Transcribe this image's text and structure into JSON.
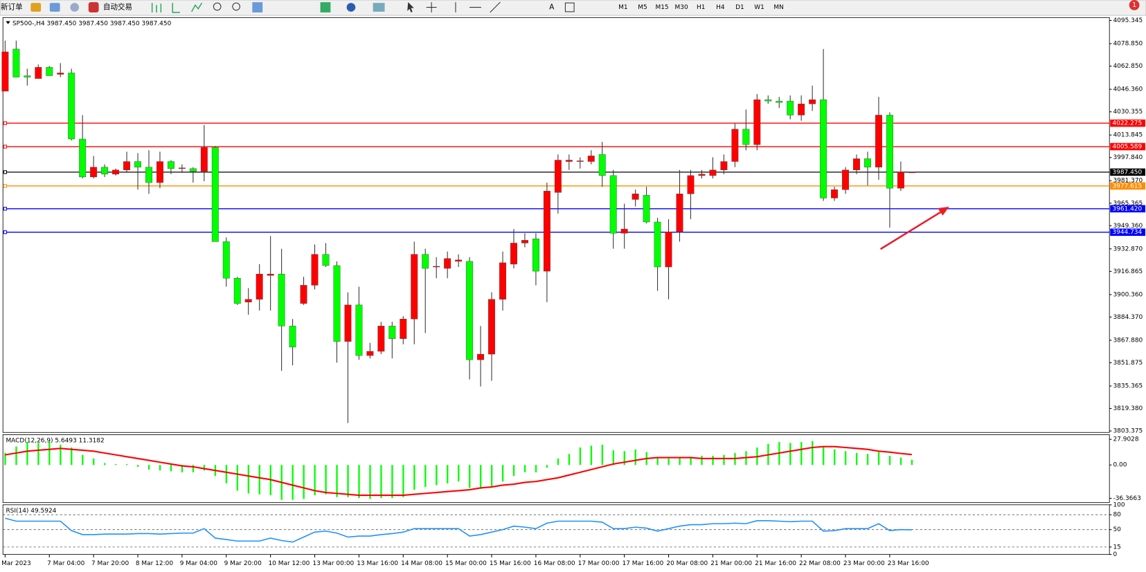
{
  "toolbar": {
    "new_order": "新订单",
    "auto_trading": "自动交易",
    "timeframes": [
      "M1",
      "M5",
      "M15",
      "M30",
      "H1",
      "H4",
      "D1",
      "W1",
      "MN"
    ]
  },
  "notification": 1,
  "chart_data": [
    {
      "type": "candlestick",
      "title": "SP500-,H4 3987.450 3987.450 3987.450 3987.450",
      "up_color": "#ff0000",
      "down_color": "#00ff00",
      "categories": [
        "Mar 2023",
        null,
        null,
        null,
        "7 Mar 04:00",
        null,
        null,
        null,
        "7 Mar 20:00",
        null,
        null,
        null,
        "8 Mar 12:00",
        null,
        null,
        null,
        "9 Mar 04:00",
        null,
        null,
        null,
        "9 Mar 20:00",
        null,
        null,
        null,
        "10 Mar 12:00",
        null,
        null,
        null,
        "13 Mar 00:00",
        null,
        null,
        null,
        "13 Mar 16:00",
        null,
        null,
        null,
        "14 Mar 08:00",
        null,
        null,
        null,
        "15 Mar 00:00",
        null,
        null,
        null,
        "15 Mar 16:00",
        null,
        null,
        null,
        "16 Mar 08:00",
        null,
        null,
        null,
        "17 Mar 00:00",
        null,
        null,
        null,
        "17 Mar 16:00",
        null,
        null,
        null,
        "20 Mar 08:00",
        null,
        null,
        null,
        "21 Mar 00:00",
        null,
        null,
        null,
        "21 Mar 16:00",
        null,
        null,
        null,
        "22 Mar 08:00",
        null,
        null,
        null,
        "23 Mar 00:00",
        null,
        null,
        null,
        "23 Mar 16:00",
        null,
        null
      ],
      "open": [
        4045,
        4075,
        4056,
        4054,
        4062,
        4057,
        4058,
        4011,
        3984,
        3991,
        3986,
        3989,
        3995,
        3991,
        3980,
        3995,
        3990,
        3990,
        3988,
        4005,
        3938,
        3912,
        3895,
        3897,
        3914,
        3915,
        3878,
        3894,
        3907,
        3929,
        3921,
        3867,
        3893,
        3857,
        3860,
        3878,
        3869,
        3883,
        3929,
        3920,
        3919,
        3924,
        3924,
        3854,
        3858,
        3897,
        3922,
        3937,
        3940,
        3917,
        3973,
        3995,
        3995,
        3995,
        4000,
        3985,
        3944,
        3968,
        3971,
        3952,
        3920,
        3945,
        3972,
        3985,
        3985,
        3989,
        3995,
        4018,
        4007,
        4039,
        4038,
        4038,
        4028,
        4036,
        4039,
        3969,
        3975,
        3989,
        3997,
        3991,
        4028,
        3976,
        3987.45
      ],
      "high": [
        4081,
        4081,
        4061,
        4064,
        4063,
        4065,
        4061,
        4028,
        3999,
        3993,
        3990,
        4002,
        4001,
        4003,
        4002,
        3996,
        3993,
        3991,
        4021,
        4006,
        3941,
        3913,
        3905,
        3922,
        3942,
        3933,
        3883,
        3913,
        3936,
        3937,
        3924,
        3902,
        3906,
        3866,
        3881,
        3881,
        3885,
        3938,
        3933,
        3927,
        3931,
        3929,
        3927,
        3878,
        3902,
        3931,
        3947,
        3944,
        3944,
        3980,
        4000,
        4000,
        3998,
        4003,
        4009,
        3989,
        3965,
        3975,
        3977,
        3955,
        3954,
        3989,
        3989,
        3989,
        3998,
        4000,
        4022,
        4032,
        4043,
        4042,
        4041,
        4042,
        4042,
        4049,
        4075,
        3977,
        3991,
        4000,
        4002,
        4041,
        4030,
        3995,
        3987.45
      ],
      "low": [
        4045,
        4055,
        4049,
        4054,
        4056,
        4055,
        4010,
        3983,
        3983,
        3984,
        3985,
        3987,
        3975,
        3972,
        3976,
        3986,
        3987,
        3980,
        3981,
        3938,
        3906,
        3893,
        3886,
        3889,
        3889,
        3846,
        3850,
        3893,
        3904,
        3920,
        3852,
        3809,
        3854,
        3855,
        3858,
        3855,
        3865,
        3865,
        3873,
        3912,
        3912,
        3920,
        3840,
        3835,
        3839,
        3889,
        3919,
        3934,
        3907,
        3895,
        3958,
        3989,
        3990,
        3993,
        3977,
        3933,
        3933,
        3963,
        3951,
        3903,
        3897,
        3938,
        3954,
        3983,
        3983,
        3986,
        3991,
        4003,
        4003,
        4036,
        4033,
        4025,
        4024,
        4031,
        3967,
        3967,
        3972,
        3986,
        3978,
        3982,
        3948,
        3974,
        3987.45
      ],
      "close": [
        4073,
        4055,
        4055,
        4062,
        4056,
        4058,
        4011,
        3984,
        3991,
        3986,
        3989,
        3995,
        3991,
        3980,
        3995,
        3990,
        3990.5,
        3988,
        4005,
        3938,
        3912,
        3894,
        3897,
        3915,
        3915,
        3878,
        3863,
        3907,
        3929,
        3921,
        3867,
        3893,
        3857,
        3860,
        3878,
        3869,
        3883,
        3929,
        3919,
        3920.5,
        3926,
        3925,
        3854,
        3858,
        3897,
        3923,
        3937,
        3939,
        3917,
        3974,
        3996,
        3996,
        3995.5,
        3999,
        3985,
        3944,
        3947,
        3972,
        3952,
        3920,
        3945,
        3972,
        3985,
        3986,
        3989,
        3995,
        4018,
        4007,
        4039,
        4038,
        4037,
        4028,
        4036,
        4039,
        3969,
        3975,
        3989,
        3997,
        3991,
        4028,
        3976,
        3987.45,
        3987.45
      ],
      "ylim": [
        3802.3,
        4097.4
      ],
      "yticks": [
        4095.345,
        {
          "value": 4078.85,
          "label": "4078.850"
        },
        {
          "value": 4062.85,
          "label": "4062.850"
        },
        {
          "value": 4046.36,
          "label": "4046.360"
        },
        4030.355,
        4013.845,
        {
          "value": 3997.84,
          "label": "3997.840"
        },
        {
          "value": 3981.37,
          "label": "3981.370"
        },
        3965.365,
        {
          "value": 3949.36,
          "label": "3949.360"
        },
        {
          "value": 3932.87,
          "label": "3932.870"
        },
        3916.865,
        {
          "value": 3900.36,
          "label": "3900.360"
        },
        {
          "value": 3884.37,
          "label": "3884.370"
        },
        {
          "value": 3867.88,
          "label": "3867.880"
        },
        3851.875,
        3835.365,
        {
          "value": 3819.38,
          "label": "3819.380"
        },
        3803.375
      ],
      "levels": [
        {
          "value": 4022.275,
          "color": "#ff0000"
        },
        {
          "value": 4005.589,
          "color": "#ff0000"
        },
        {
          "value": 3987.45,
          "label": "3987.450",
          "color": "#000000"
        },
        {
          "value": 3977.615,
          "color": "#ff8c00"
        },
        {
          "value": 3961.42,
          "label": "3961.420",
          "color": "#0000ff"
        },
        {
          "value": 3944.734,
          "color": "#0000ff"
        }
      ]
    },
    {
      "type": "macd",
      "title": "MACD(12,26,9) 5.6493 11.3182",
      "ylim": [
        -41,
        33
      ],
      "yticks": [
        27.9028,
        {
          "value": 0,
          "label": "0.00"
        },
        -36.3663
      ],
      "series": [
        {
          "color": "#00ff00",
          "values": [
            13,
            20,
            25,
            24,
            25,
            22,
            19,
            11,
            7,
            2,
            1,
            1,
            -2,
            -5,
            -6,
            -7,
            -8,
            -8,
            -6,
            -12,
            -20,
            -28,
            -31,
            -32,
            -33,
            -38,
            -38,
            -37,
            -33,
            -32,
            -35,
            -35,
            -36,
            -37,
            -36,
            -36,
            -35,
            -27,
            -24,
            -22,
            -20,
            -18,
            -25,
            -26,
            -24,
            -18,
            -12,
            -8,
            -8,
            -3,
            7,
            12,
            19,
            21,
            22,
            16,
            15,
            17,
            14,
            8,
            7,
            8,
            9,
            10,
            10,
            11,
            13,
            15,
            19,
            23,
            25,
            24,
            25,
            26,
            20,
            17,
            15,
            13,
            12,
            14,
            10,
            8,
            5.6493
          ]
        },
        {
          "color": "#ff0000",
          "values": [
            11,
            13,
            15,
            16,
            17,
            18,
            17,
            16,
            15,
            13,
            11,
            9,
            7,
            5,
            3,
            1,
            -1,
            -2,
            -4,
            -6,
            -8,
            -10,
            -12,
            -14,
            -16,
            -19,
            -22,
            -25,
            -28,
            -30,
            -31,
            -32,
            -33,
            -33,
            -33,
            -33,
            -33,
            -32,
            -31,
            -30,
            -29,
            -28,
            -27,
            -25,
            -24,
            -22,
            -21,
            -19,
            -18,
            -16,
            -14,
            -11,
            -8,
            -5,
            -2,
            1,
            3,
            5,
            7,
            8,
            8,
            8,
            8,
            7,
            7,
            7,
            7,
            8,
            9,
            11,
            13,
            15,
            17,
            19,
            20,
            20,
            19,
            18,
            17,
            15,
            14,
            12.5,
            11.3182
          ]
        }
      ]
    },
    {
      "type": "rsi",
      "title": "RSI(14) 49.5924",
      "ylim": [
        0,
        100
      ],
      "yticks": [
        100,
        80,
        50,
        15,
        0
      ],
      "levels": [
        80,
        50,
        15
      ],
      "series": [
        {
          "color": "#1e90ff",
          "values": [
            73,
            67,
            67,
            67,
            67,
            67,
            48,
            40,
            40,
            41,
            41,
            41,
            42,
            42,
            41,
            42,
            43,
            43,
            52,
            33,
            30,
            27,
            27,
            27,
            33,
            28,
            25,
            35,
            45,
            47,
            43,
            35,
            37,
            37,
            40,
            42,
            45,
            52,
            52,
            52,
            52,
            52,
            37,
            40,
            45,
            50,
            57,
            55,
            52,
            63,
            67,
            67,
            67,
            67,
            65,
            52,
            52,
            55,
            53,
            47,
            52,
            57,
            60,
            60,
            62,
            62,
            63,
            62,
            68,
            68,
            67,
            66,
            67,
            67,
            47,
            48,
            52,
            52,
            52,
            62,
            48,
            50,
            49.5924
          ]
        }
      ]
    }
  ]
}
